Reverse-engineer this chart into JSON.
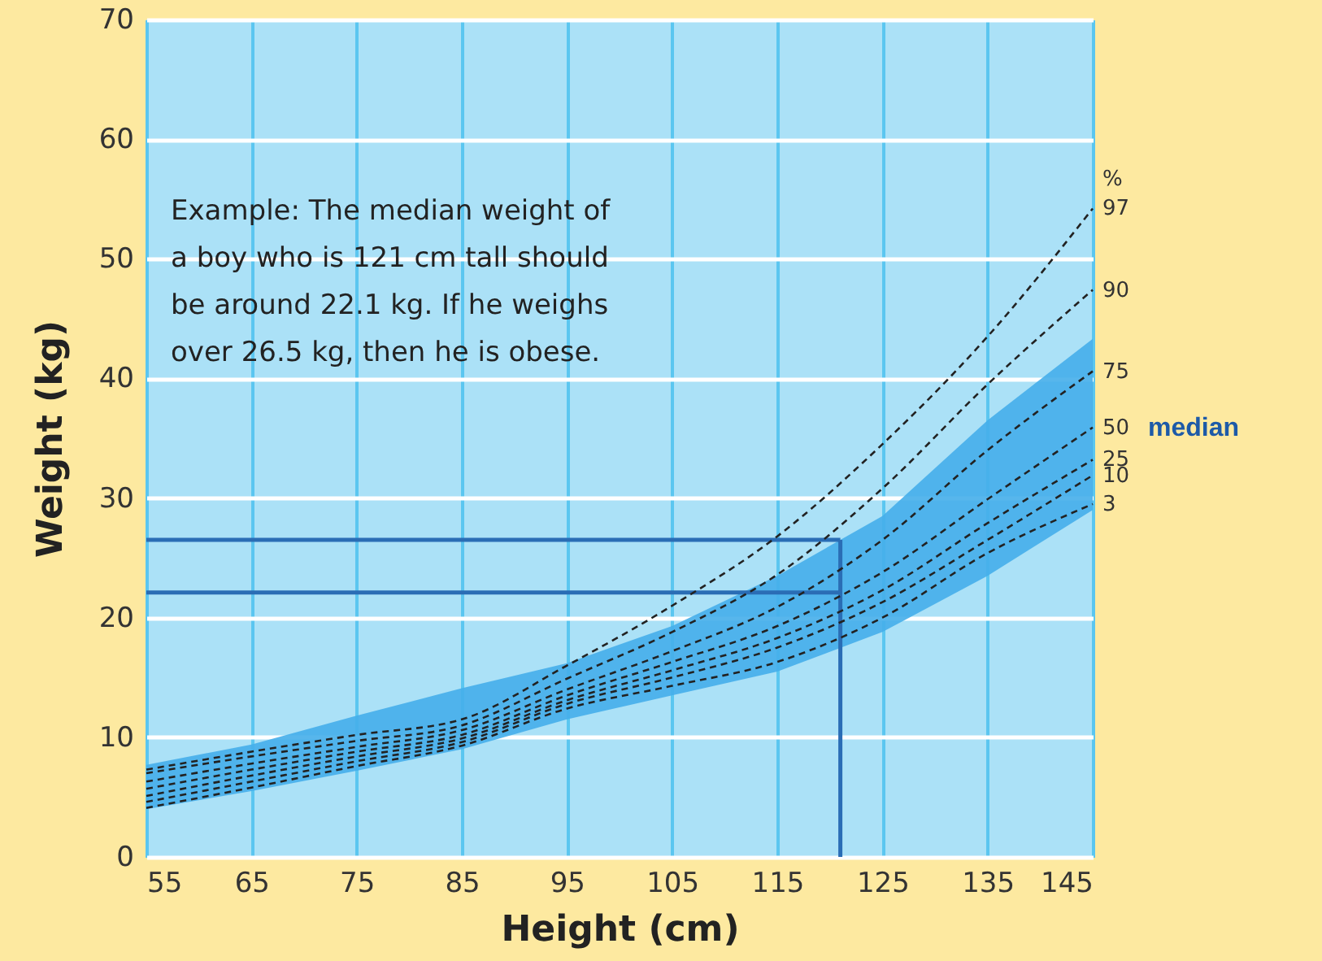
{
  "chart_data": {
    "type": "line",
    "xlabel": "Height (cm)",
    "ylabel": "Weight (kg)",
    "legend_title": "%",
    "x": [
      55,
      65,
      75,
      85,
      95,
      105,
      115,
      125,
      135,
      145
    ],
    "series": [
      {
        "name": "97",
        "color": "#222222",
        "values": [
          7.3,
          8.8,
          10.2,
          11.5,
          16.0,
          21.0,
          26.8,
          34.5,
          43.5,
          54.2
        ]
      },
      {
        "name": "90",
        "color": "#222222",
        "values": [
          7.0,
          8.4,
          9.7,
          11.0,
          14.9,
          18.8,
          23.6,
          30.8,
          39.5,
          47.4
        ]
      },
      {
        "name": "75",
        "color": "#222222",
        "values": [
          6.3,
          7.8,
          9.2,
          10.6,
          14.0,
          17.2,
          20.9,
          26.5,
          34.0,
          40.6
        ]
      },
      {
        "name": "50",
        "color": "#222222",
        "values": [
          5.7,
          7.3,
          8.8,
          10.2,
          13.5,
          16.3,
          19.3,
          23.8,
          29.9,
          35.9
        ],
        "lower": [
          4.0,
          5.5,
          7.2,
          9.0,
          11.5,
          13.5,
          15.5,
          18.8,
          23.5,
          29.0
        ],
        "upper": [
          7.7,
          9.4,
          11.8,
          14.1,
          16.2,
          19.3,
          23.5,
          28.5,
          36.5,
          43.3
        ]
      },
      {
        "name": "25",
        "color": "#222222",
        "values": [
          5.1,
          6.8,
          8.4,
          9.9,
          13.1,
          15.6,
          18.3,
          22.3,
          27.9,
          33.2
        ]
      },
      {
        "name": "10",
        "color": "#222222",
        "values": [
          4.6,
          6.3,
          8.0,
          9.6,
          12.8,
          15.0,
          17.5,
          21.3,
          26.5,
          31.9
        ]
      },
      {
        "name": "3",
        "color": "#222222",
        "values": [
          4.1,
          5.8,
          7.6,
          9.3,
          12.4,
          14.3,
          16.3,
          20.0,
          25.4,
          29.5
        ]
      }
    ],
    "xlim": [
      55,
      145
    ],
    "xticks": [
      55,
      65,
      75,
      85,
      95,
      105,
      115,
      125,
      135,
      145
    ],
    "ylim": [
      0,
      70
    ],
    "yticks": [
      0,
      10,
      20,
      30,
      40,
      50,
      60,
      70
    ],
    "grid": true,
    "legend": false,
    "line_style": "dashed",
    "marker": "none",
    "ref_lines": [
      {
        "axis": "x",
        "value": 121,
        "color": "#2a6db5"
      },
      {
        "axis": "y",
        "value": 22.1,
        "color": "#2a6db5"
      },
      {
        "axis": "y",
        "value": 26.5,
        "color": "#2a6db5"
      }
    ],
    "annotations": [
      "Example: The median weight of\na boy who is 121 cm tall should\nbe around 22.1 kg. If he weighs\nover 26.5 kg, then he is obese.",
      {
        "text": "median",
        "x": 145,
        "y": 35.9
      }
    ]
  }
}
